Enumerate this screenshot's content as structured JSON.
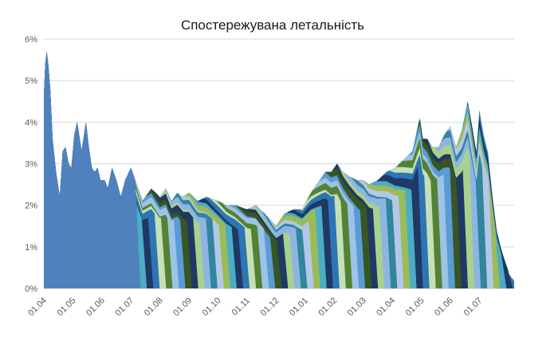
{
  "chart_data": {
    "type": "area",
    "title": "Спостережувана летальність",
    "xlabel": "",
    "ylabel": "",
    "ylim": [
      0,
      6
    ],
    "y_ticks": [
      "0%",
      "1%",
      "2%",
      "3%",
      "4%",
      "5%",
      "6%"
    ],
    "x_ticks": [
      "01.04",
      "01.05",
      "01.06",
      "01.07",
      "01.08",
      "01.09",
      "01.10",
      "01.11",
      "01.12",
      "01.01",
      "01.02",
      "01.03",
      "01.04",
      "01.05",
      "01.06",
      "01.07"
    ],
    "x_range": [
      0,
      16.2
    ],
    "grid": true,
    "legend": "none",
    "colors": [
      "#4f81bd",
      "#9bbb59",
      "#4bacc6",
      "#1f3864",
      "#2e75b6",
      "#c5e0b4",
      "#548235",
      "#9dc3e6",
      "#5b9bd5",
      "#375623",
      "#203864",
      "#a9d18e",
      "#8eb4e3",
      "#31859c",
      "#b4c7e7"
    ],
    "envelope": {
      "x": [
        0,
        0.05,
        0.1,
        0.15,
        0.22,
        0.3,
        0.42,
        0.55,
        0.65,
        0.75,
        0.85,
        0.95,
        1.05,
        1.15,
        1.3,
        1.45,
        1.55,
        1.65,
        1.75,
        1.85,
        1.95,
        2.1,
        2.2,
        2.35,
        2.5,
        2.65,
        2.8,
        3.0,
        3.2,
        3.4,
        3.7,
        4.0,
        4.2,
        4.4,
        4.6,
        4.8,
        5.0,
        5.3,
        5.6,
        6.0,
        6.3,
        6.6,
        7.0,
        7.3,
        7.6,
        8.0,
        8.3,
        8.6,
        8.9,
        9.2,
        9.5,
        9.7,
        9.9,
        10.1,
        10.3,
        10.5,
        10.8,
        11.0,
        11.2,
        11.5,
        11.8,
        12.1,
        12.4,
        12.7,
        12.95,
        13.05,
        13.2,
        13.4,
        13.6,
        13.8,
        14.0,
        14.2,
        14.4,
        14.6,
        14.8,
        14.9,
        15.0,
        15.15,
        15.3,
        15.45,
        15.6,
        15.8,
        16.0,
        16.2
      ],
      "y": [
        4.6,
        5.4,
        5.7,
        5.4,
        4.8,
        3.6,
        2.8,
        2.2,
        3.3,
        3.4,
        3.0,
        2.9,
        3.7,
        4.0,
        3.3,
        4.0,
        3.4,
        2.9,
        2.8,
        2.9,
        2.6,
        2.6,
        2.4,
        2.9,
        2.6,
        2.2,
        2.6,
        2.9,
        2.5,
        2.1,
        2.4,
        2.2,
        2.4,
        2.1,
        2.3,
        2.2,
        2.3,
        2.1,
        2.2,
        2.1,
        2.0,
        2.0,
        1.9,
        2.0,
        1.8,
        1.5,
        1.8,
        1.9,
        1.9,
        2.3,
        2.6,
        2.8,
        2.8,
        3.0,
        2.8,
        2.7,
        2.6,
        2.6,
        2.5,
        2.6,
        2.8,
        2.9,
        3.1,
        3.3,
        4.1,
        3.6,
        3.6,
        3.4,
        3.4,
        3.7,
        3.9,
        3.4,
        3.8,
        4.5,
        3.7,
        3.3,
        4.3,
        3.8,
        3.5,
        2.5,
        1.6,
        1.0,
        0.5,
        0.3
      ]
    }
  }
}
